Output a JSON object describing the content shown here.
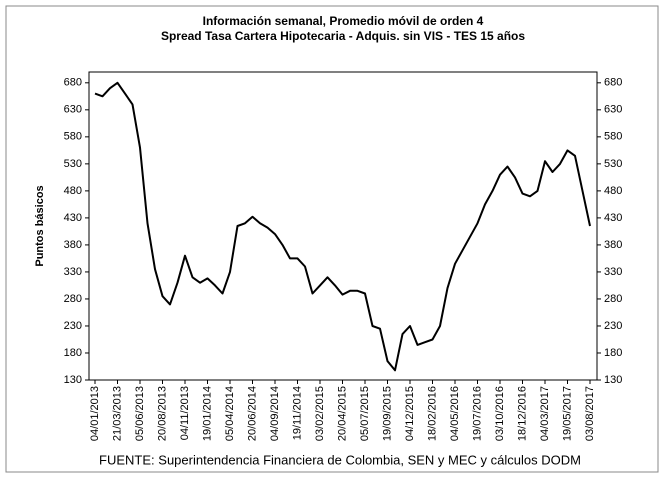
{
  "chart_data": {
    "type": "line",
    "title": "Información semanal, Promedio móvil de orden 4",
    "subtitle": "Spread Tasa Cartera Hipotecaria - Adquis. sin VIS -  TES 15 años",
    "y_label": "Puntos básicos",
    "source": "FUENTE: Superintendencia Financiera de Colombia, SEN y MEC y cálculos DODM",
    "categories": [
      "04/01/2013",
      null,
      null,
      "21/03/2013",
      null,
      null,
      "05/06/2013",
      null,
      null,
      "20/08/2013",
      null,
      null,
      "04/11/2013",
      null,
      null,
      "19/01/2014",
      null,
      null,
      "05/04/2014",
      null,
      null,
      "20/06/2014",
      null,
      null,
      "04/09/2014",
      null,
      null,
      "19/11/2014",
      null,
      null,
      "03/02/2015",
      null,
      null,
      "20/04/2015",
      null,
      null,
      "05/07/2015",
      null,
      null,
      "19/09/2015",
      null,
      null,
      "04/12/2015",
      null,
      null,
      "18/02/2016",
      null,
      null,
      "04/05/2016",
      null,
      null,
      "19/07/2016",
      null,
      null,
      "03/10/2016",
      null,
      null,
      "18/12/2016",
      null,
      null,
      "04/03/2017",
      null,
      null,
      "19/05/2017",
      null,
      null,
      "03/08/2017"
    ],
    "values": [
      660,
      655,
      670,
      680,
      660,
      640,
      560,
      420,
      335,
      285,
      270,
      310,
      360,
      320,
      310,
      318,
      305,
      290,
      330,
      415,
      420,
      432,
      420,
      412,
      400,
      380,
      355,
      355,
      340,
      290,
      305,
      320,
      305,
      288,
      295,
      295,
      290,
      230,
      225,
      165,
      148,
      215,
      230,
      195,
      200,
      205,
      230,
      300,
      345,
      370,
      395,
      420,
      455,
      480,
      510,
      525,
      505,
      475,
      470,
      480,
      535,
      515,
      530,
      555,
      545,
      480,
      415
    ],
    "color": "#000000",
    "ylim": [
      130,
      700
    ],
    "yticks": [
      130,
      180,
      230,
      280,
      330,
      380,
      430,
      480,
      530,
      580,
      630,
      680
    ],
    "y2lim": [
      130,
      700
    ],
    "y2ticks": [
      130,
      180,
      230,
      280,
      330,
      380,
      430,
      480,
      530,
      580,
      630,
      680
    ]
  }
}
